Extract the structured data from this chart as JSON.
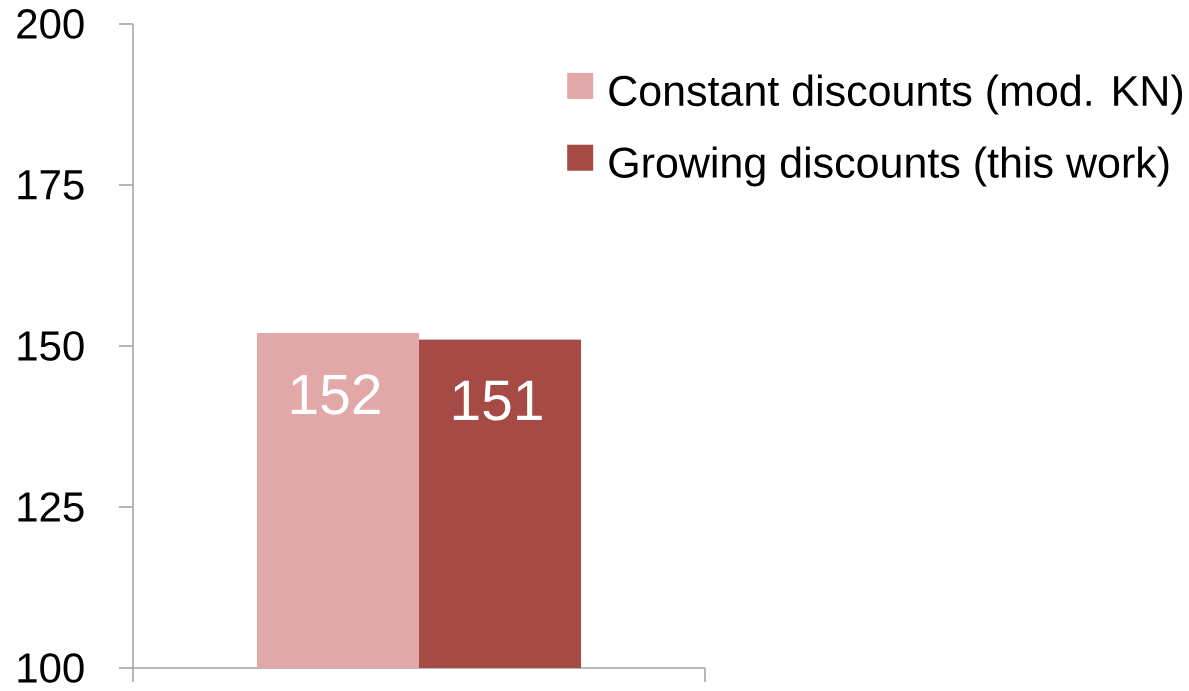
{
  "chart_data": {
    "type": "bar",
    "categories": [
      null
    ],
    "series": [
      {
        "name": "Constant discounts (mod. KN)",
        "color": "#e1a8a7",
        "values": [
          152
        ]
      },
      {
        "name": "Growing discounts (this work)",
        "color": "#a64a45",
        "values": [
          151
        ]
      }
    ],
    "ylim": [
      100,
      200
    ],
    "yticks": [
      100,
      125,
      150,
      175,
      200
    ],
    "data_labels": true,
    "legend": "top right"
  }
}
